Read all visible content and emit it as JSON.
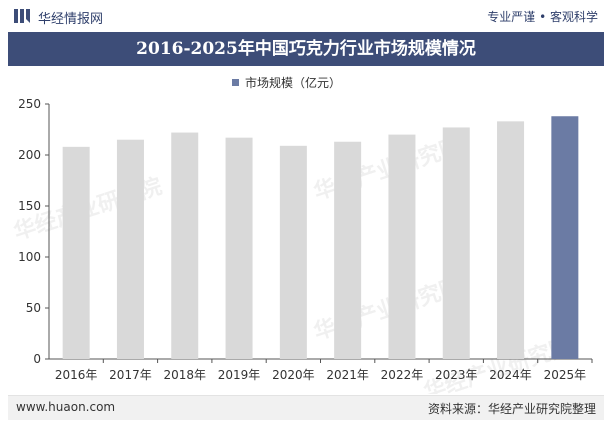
{
  "header": {
    "brand": "华经情报网",
    "slogan": "专业严谨 • 客观科学"
  },
  "footer": {
    "site": "www.huaon.com",
    "source": "资料来源：华经产业研究院整理"
  },
  "watermark": "华经产业研究院",
  "colors": {
    "title_band": "#3d4d78",
    "bar": "#d9d9d9",
    "bar_highlight": "#6b7ba4",
    "legend_marker": "#6b7ba4"
  },
  "chart_data": {
    "type": "bar",
    "title": "2016-2025年中国巧克力行业市场规模情况",
    "categories": [
      "2016年",
      "2017年",
      "2018年",
      "2019年",
      "2020年",
      "2021年",
      "2022年",
      "2023年",
      "2024年",
      "2025年"
    ],
    "series": [
      {
        "name": "市场规模（亿元）",
        "values": [
          208,
          215,
          222,
          217,
          209,
          213,
          220,
          227,
          233,
          238
        ]
      }
    ],
    "highlight_index": 9,
    "ylim": [
      0,
      250
    ],
    "yticks": [
      0,
      50,
      100,
      150,
      200,
      250
    ],
    "legend_position": "top-center",
    "grid": false
  }
}
